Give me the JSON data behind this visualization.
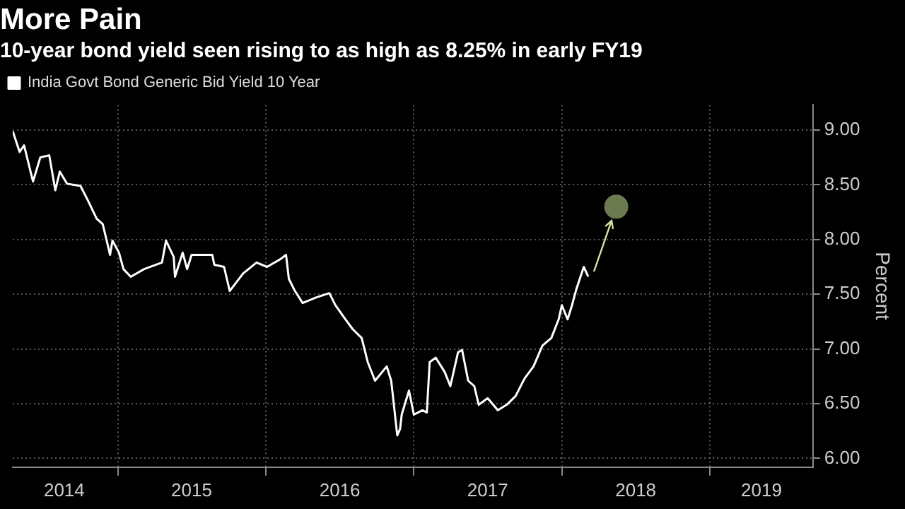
{
  "chart_data": {
    "type": "line",
    "title": "More Pain",
    "subtitle": "10-year bond yield seen rising to as high as 8.25% in early FY19",
    "ylabel": "Percent",
    "legend": "top left",
    "grid": true,
    "xlim": [
      "2014-04-17",
      "2019-09-12"
    ],
    "xticks": [
      {
        "value": "2014-08-22",
        "label": "2014"
      },
      {
        "value": "2015-01-01",
        "label": null
      },
      {
        "value": "2015-07-02",
        "label": "2015"
      },
      {
        "value": "2016-01-01",
        "label": null
      },
      {
        "value": "2016-07-02",
        "label": "2016"
      },
      {
        "value": "2017-01-01",
        "label": null
      },
      {
        "value": "2017-07-02",
        "label": "2017"
      },
      {
        "value": "2018-01-01",
        "label": null
      },
      {
        "value": "2018-07-02",
        "label": "2018"
      },
      {
        "value": "2019-01-01",
        "label": null
      },
      {
        "value": "2019-05-08",
        "label": "2019"
      }
    ],
    "ylim": [
      5.92,
      9.23
    ],
    "yticks": [
      {
        "value": 6,
        "label": "6.00"
      },
      {
        "value": 6.5,
        "label": "6.50"
      },
      {
        "value": 7,
        "label": "7.00"
      },
      {
        "value": 7.5,
        "label": "7.50"
      },
      {
        "value": 8,
        "label": "8.00"
      },
      {
        "value": 8.5,
        "label": "8.50"
      },
      {
        "value": 9,
        "label": "9.00"
      }
    ],
    "series": [
      {
        "name": "India Govt Bond Generic Bid Yield 10 Year",
        "color": "#ffffff",
        "x": [
          "2014-04-17",
          "2014-05-04",
          "2014-05-15",
          "2014-06-06",
          "2014-06-24",
          "2014-07-16",
          "2014-07-31",
          "2014-08-11",
          "2014-08-29",
          "2014-10-01",
          "2014-10-19",
          "2014-11-10",
          "2014-11-25",
          "2014-12-13",
          "2014-12-19",
          "2015-01-04",
          "2015-01-15",
          "2015-02-02",
          "2015-03-07",
          "2015-04-20",
          "2015-04-30",
          "2015-05-19",
          "2015-05-22",
          "2015-06-10",
          "2015-06-21",
          "2015-07-02",
          "2015-08-22",
          "2015-08-27",
          "2015-09-20",
          "2015-10-04",
          "2015-11-06",
          "2015-12-09",
          "2016-01-04",
          "2016-02-06",
          "2016-02-20",
          "2016-02-27",
          "2016-03-13",
          "2016-04-01",
          "2016-05-04",
          "2016-06-06",
          "2016-06-21",
          "2016-07-16",
          "2016-08-03",
          "2016-08-25",
          "2016-09-09",
          "2016-09-27",
          "2016-10-26",
          "2016-11-06",
          "2016-11-21",
          "2016-11-28",
          "2016-12-02",
          "2016-12-20",
          "2017-01-01",
          "2017-01-22",
          "2017-02-02",
          "2017-02-09",
          "2017-02-24",
          "2017-03-18",
          "2017-04-01",
          "2017-04-20",
          "2017-04-30",
          "2017-05-15",
          "2017-05-30",
          "2017-06-10",
          "2017-07-02",
          "2017-07-27",
          "2017-08-18",
          "2017-09-09",
          "2017-10-01",
          "2017-10-23",
          "2017-11-14",
          "2017-12-06",
          "2017-12-24",
          "2018-01-01",
          "2018-01-15",
          "2018-01-26",
          "2018-02-06",
          "2018-02-24",
          "2018-03-07"
        ],
        "values": [
          8.99,
          8.8,
          8.86,
          8.53,
          8.75,
          8.77,
          8.45,
          8.62,
          8.51,
          8.49,
          8.36,
          8.19,
          8.14,
          7.86,
          7.99,
          7.88,
          7.73,
          7.66,
          7.73,
          7.79,
          7.99,
          7.84,
          7.66,
          7.88,
          7.73,
          7.86,
          7.86,
          7.77,
          7.75,
          7.53,
          7.69,
          7.79,
          7.75,
          7.82,
          7.86,
          7.64,
          7.53,
          7.42,
          7.47,
          7.51,
          7.4,
          7.27,
          7.18,
          7.1,
          6.88,
          6.71,
          6.84,
          6.71,
          6.21,
          6.27,
          6.4,
          6.62,
          6.4,
          6.44,
          6.42,
          6.88,
          6.92,
          6.79,
          6.66,
          6.97,
          6.99,
          6.71,
          6.66,
          6.49,
          6.55,
          6.44,
          6.49,
          6.57,
          6.73,
          6.84,
          7.03,
          7.1,
          7.27,
          7.4,
          7.27,
          7.4,
          7.55,
          7.75,
          7.66
        ]
      },
      {
        "type": "scatter",
        "color": "#6b7a4f",
        "x": [
          "2018-05-15"
        ],
        "values": [
          8.3
        ]
      }
    ]
  }
}
